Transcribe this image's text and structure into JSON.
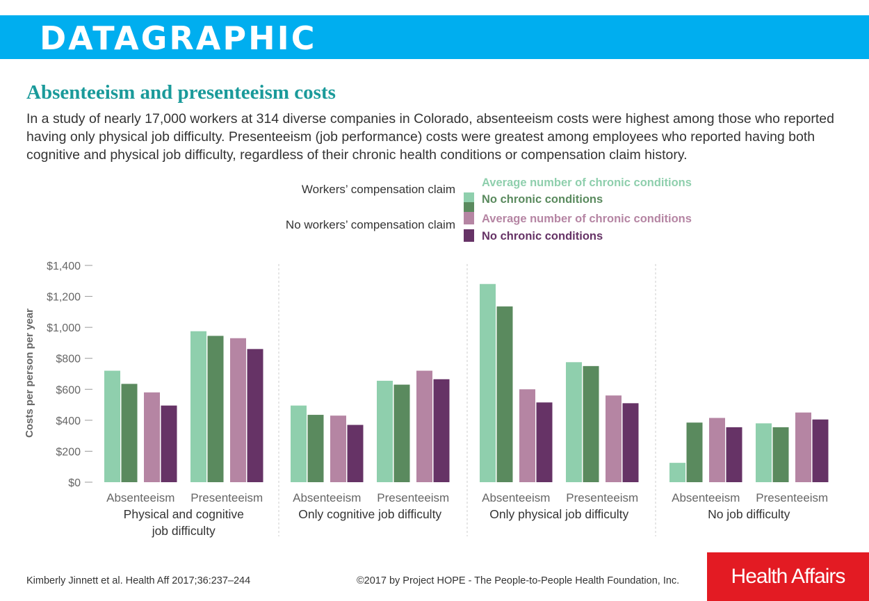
{
  "banner": {
    "label": "DATAGRAPHIC"
  },
  "title": "Absenteeism and presenteeism costs",
  "subtitle": "In a study of nearly 17,000 workers at 314 diverse companies in Colorado, absenteeism costs were highest among those who reported having only physical job difficulty. Presenteeism (job performance) costs were greatest among employees who reported having both cognitive and physical job difficulty, regardless of their chronic health conditions or compensation claim history.",
  "legend": {
    "group1_label": "Workers’ compensation claim",
    "group2_label": "No workers’ compensation claim",
    "items": [
      {
        "label": "Average number of chronic conditions",
        "color": "#8fcfad"
      },
      {
        "label": "No chronic conditions",
        "color": "#5a8a5e"
      },
      {
        "label": "Average number of chronic conditions",
        "color": "#b585a3"
      },
      {
        "label": "No chronic conditions",
        "color": "#663366"
      }
    ]
  },
  "chart_data": {
    "type": "bar",
    "ylabel": "Costs per person per year",
    "ylim": [
      0,
      1400
    ],
    "yticks": [
      {
        "value": 0,
        "label": "$0"
      },
      {
        "value": 200,
        "label": "$200"
      },
      {
        "value": 400,
        "label": "$400"
      },
      {
        "value": 600,
        "label": "$600"
      },
      {
        "value": 800,
        "label": "$800"
      },
      {
        "value": 1000,
        "label": "$1,000"
      },
      {
        "value": 1200,
        "label": "$1,200"
      },
      {
        "value": 1400,
        "label": "$1,400"
      }
    ],
    "series": [
      {
        "name": "Workers’ compensation claim – Average number of chronic conditions",
        "color": "#8fcfad"
      },
      {
        "name": "Workers’ compensation claim – No chronic conditions",
        "color": "#5a8a5e"
      },
      {
        "name": "No workers’ compensation claim – Average number of chronic conditions",
        "color": "#b585a3"
      },
      {
        "name": "No workers’ compensation claim – No chronic conditions",
        "color": "#663366"
      }
    ],
    "panels": [
      {
        "label": "Physical and cognitive job difficulty",
        "label_lines": [
          "Physical and cognitive",
          "job difficulty"
        ],
        "categories": [
          {
            "label": "Absenteeism",
            "values": [
              720,
              635,
              580,
              495
            ]
          },
          {
            "label": "Presenteeism",
            "values": [
              975,
              945,
              930,
              860
            ]
          }
        ]
      },
      {
        "label": "Only cognitive job difficulty",
        "label_lines": [
          "Only cognitive job difficulty"
        ],
        "categories": [
          {
            "label": "Absenteeism",
            "values": [
              495,
              435,
              430,
              370
            ]
          },
          {
            "label": "Presenteeism",
            "values": [
              655,
              630,
              720,
              665
            ]
          }
        ]
      },
      {
        "label": "Only physical job difficulty",
        "label_lines": [
          "Only physical job difficulty"
        ],
        "categories": [
          {
            "label": "Absenteeism",
            "values": [
              1280,
              1135,
              600,
              515
            ]
          },
          {
            "label": "Presenteeism",
            "values": [
              775,
              750,
              560,
              510
            ]
          }
        ]
      },
      {
        "label": "No job difficulty",
        "label_lines": [
          "No job difficulty"
        ],
        "categories": [
          {
            "label": "Absenteeism",
            "values": [
              125,
              385,
              415,
              355
            ]
          },
          {
            "label": "Presenteeism",
            "values": [
              380,
              355,
              450,
              405
            ]
          }
        ]
      }
    ]
  },
  "footer": {
    "citation": "Kimberly Jinnett et al. Health Aff 2017;36:237–244",
    "copyright": "©2017 by Project HOPE - The People-to-People Health Foundation, Inc.",
    "brand": "Health Affairs"
  }
}
